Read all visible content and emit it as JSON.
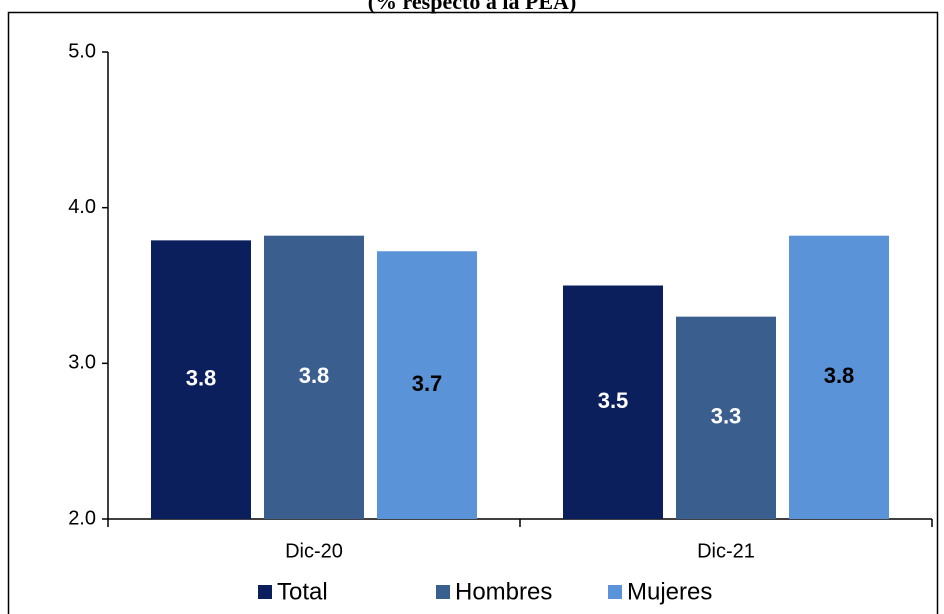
{
  "chart_data": {
    "type": "bar",
    "title": "(% respecto a la PEA)",
    "categories": [
      "Dic-20",
      "Dic-21"
    ],
    "series": [
      {
        "name": "Total",
        "color": "#0b1f5c",
        "values": [
          3.79,
          3.5
        ],
        "value_labels": [
          "3.8",
          "3.5"
        ],
        "label_color": "#ffffff"
      },
      {
        "name": "Hombres",
        "color": "#3a5f8f",
        "values": [
          3.82,
          3.3
        ],
        "value_labels": [
          "3.8",
          "3.3"
        ],
        "label_color": "#ffffff"
      },
      {
        "name": "Mujeres",
        "color": "#5b93d8",
        "values": [
          3.72,
          3.82
        ],
        "value_labels": [
          "3.7",
          "3.8"
        ],
        "label_color": "#000000"
      }
    ],
    "ylim": [
      2,
      5
    ],
    "yticks": [
      {
        "value": 2,
        "label": "2.0"
      },
      {
        "value": 3,
        "label": "3.0"
      },
      {
        "value": 4,
        "label": "4.0"
      },
      {
        "value": 5,
        "label": "5.0"
      }
    ],
    "grid": false,
    "legend": "bottom"
  }
}
